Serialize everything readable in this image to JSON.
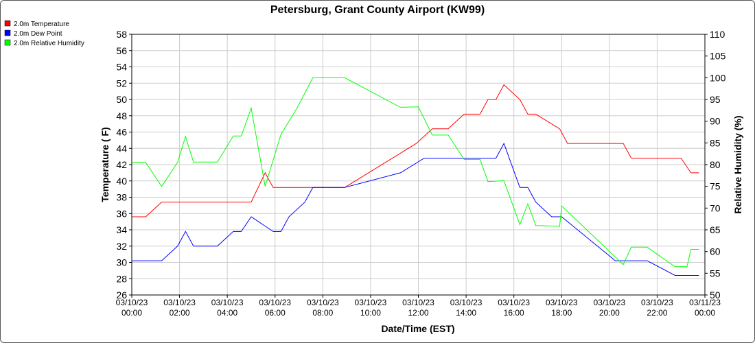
{
  "chart_data": {
    "type": "line",
    "title": "Petersburg, Grant County Airport (KW99)",
    "xlabel": "Date/Time (EST)",
    "ylabel": "Temperature ( F)",
    "y2label": "Relative Humidity (%)",
    "xlim": [
      "2023-03-10 00:00",
      "2023-03-11 00:00"
    ],
    "ylim": [
      26,
      58
    ],
    "y2lim": [
      50,
      110
    ],
    "x_ticks": [
      {
        "t": "2023-03-10 00:00",
        "date": "03/10/23",
        "time": "00:00"
      },
      {
        "t": "2023-03-10 02:00",
        "date": "03/10/23",
        "time": "02:00"
      },
      {
        "t": "2023-03-10 04:00",
        "date": "03/10/23",
        "time": "04:00"
      },
      {
        "t": "2023-03-10 06:00",
        "date": "03/10/23",
        "time": "06:00"
      },
      {
        "t": "2023-03-10 08:00",
        "date": "03/10/23",
        "time": "08:00"
      },
      {
        "t": "2023-03-10 10:00",
        "date": "03/10/23",
        "time": "10:00"
      },
      {
        "t": "2023-03-10 12:00",
        "date": "03/10/23",
        "time": "12:00"
      },
      {
        "t": "2023-03-10 14:00",
        "date": "03/10/23",
        "time": "14:00"
      },
      {
        "t": "2023-03-10 16:00",
        "date": "03/10/23",
        "time": "16:00"
      },
      {
        "t": "2023-03-10 18:00",
        "date": "03/10/23",
        "time": "18:00"
      },
      {
        "t": "2023-03-10 20:00",
        "date": "03/10/23",
        "time": "20:00"
      },
      {
        "t": "2023-03-10 22:00",
        "date": "03/10/23",
        "time": "22:00"
      },
      {
        "t": "2023-03-11 00:00",
        "date": "03/11/23",
        "time": "00:00"
      }
    ],
    "y_ticks": [
      26,
      28,
      30,
      32,
      34,
      36,
      38,
      40,
      42,
      44,
      46,
      48,
      50,
      52,
      54,
      56,
      58
    ],
    "y2_ticks": [
      50,
      55,
      60,
      65,
      70,
      75,
      80,
      85,
      90,
      95,
      100,
      105,
      110
    ],
    "grid": true,
    "legend_position": "top-left",
    "series": [
      {
        "name": "2.0m Temperature",
        "axis": "left",
        "color": "#ff0000",
        "points": [
          [
            "2023-03-10 00:00",
            35.6
          ],
          [
            "2023-03-10 00:35",
            35.6
          ],
          [
            "2023-03-10 01:15",
            37.4
          ],
          [
            "2023-03-10 05:00",
            37.4
          ],
          [
            "2023-03-10 05:35",
            41.0
          ],
          [
            "2023-03-10 05:55",
            39.2
          ],
          [
            "2023-03-10 08:55",
            39.2
          ],
          [
            "2023-03-10 11:55",
            44.6
          ],
          [
            "2023-03-10 12:35",
            46.4
          ],
          [
            "2023-03-10 13:15",
            46.4
          ],
          [
            "2023-03-10 13:55",
            48.2
          ],
          [
            "2023-03-10 14:35",
            48.2
          ],
          [
            "2023-03-10 14:55",
            50.0
          ],
          [
            "2023-03-10 15:15",
            50.0
          ],
          [
            "2023-03-10 15:35",
            51.8
          ],
          [
            "2023-03-10 16:15",
            50.0
          ],
          [
            "2023-03-10 16:35",
            48.2
          ],
          [
            "2023-03-10 16:55",
            48.2
          ],
          [
            "2023-03-10 17:55",
            46.4
          ],
          [
            "2023-03-10 18:15",
            44.6
          ],
          [
            "2023-03-10 20:35",
            44.6
          ],
          [
            "2023-03-10 20:55",
            42.8
          ],
          [
            "2023-03-10 23:00",
            42.8
          ],
          [
            "2023-03-10 23:25",
            41.0
          ],
          [
            "2023-03-10 23:45",
            41.0
          ]
        ]
      },
      {
        "name": "2.0m Dew Point",
        "axis": "left",
        "color": "#0000ff",
        "points": [
          [
            "2023-03-10 00:00",
            30.2
          ],
          [
            "2023-03-10 01:15",
            30.2
          ],
          [
            "2023-03-10 01:55",
            32.0
          ],
          [
            "2023-03-10 02:15",
            33.8
          ],
          [
            "2023-03-10 02:35",
            32.0
          ],
          [
            "2023-03-10 03:35",
            32.0
          ],
          [
            "2023-03-10 04:15",
            33.8
          ],
          [
            "2023-03-10 04:35",
            33.8
          ],
          [
            "2023-03-10 05:00",
            35.6
          ],
          [
            "2023-03-10 05:55",
            33.8
          ],
          [
            "2023-03-10 06:15",
            33.8
          ],
          [
            "2023-03-10 06:35",
            35.6
          ],
          [
            "2023-03-10 07:15",
            37.4
          ],
          [
            "2023-03-10 07:35",
            39.2
          ],
          [
            "2023-03-10 08:55",
            39.2
          ],
          [
            "2023-03-10 11:15",
            41.0
          ],
          [
            "2023-03-10 12:15",
            42.8
          ],
          [
            "2023-03-10 15:15",
            42.8
          ],
          [
            "2023-03-10 15:35",
            44.6
          ],
          [
            "2023-03-10 16:15",
            39.2
          ],
          [
            "2023-03-10 16:35",
            39.2
          ],
          [
            "2023-03-10 16:55",
            37.4
          ],
          [
            "2023-03-10 17:35",
            35.6
          ],
          [
            "2023-03-10 18:00",
            35.6
          ],
          [
            "2023-03-10 20:15",
            30.2
          ],
          [
            "2023-03-10 21:35",
            30.2
          ],
          [
            "2023-03-10 22:45",
            28.4
          ],
          [
            "2023-03-10 23:45",
            28.4
          ]
        ]
      },
      {
        "name": "2.0m Relative Humidity",
        "axis": "right",
        "color": "#00ff00",
        "points": [
          [
            "2023-03-10 00:00",
            80.5
          ],
          [
            "2023-03-10 00:35",
            80.5
          ],
          [
            "2023-03-10 01:15",
            75.0
          ],
          [
            "2023-03-10 01:55",
            80.5
          ],
          [
            "2023-03-10 02:15",
            86.5
          ],
          [
            "2023-03-10 02:35",
            80.6
          ],
          [
            "2023-03-10 03:35",
            80.6
          ],
          [
            "2023-03-10 04:15",
            86.6
          ],
          [
            "2023-03-10 04:35",
            86.6
          ],
          [
            "2023-03-10 05:00",
            93.0
          ],
          [
            "2023-03-10 05:35",
            75.0
          ],
          [
            "2023-03-10 06:15",
            87.0
          ],
          [
            "2023-03-10 06:55",
            93.0
          ],
          [
            "2023-03-10 07:35",
            100.0
          ],
          [
            "2023-03-10 08:55",
            100.0
          ],
          [
            "2023-03-10 11:15",
            93.2
          ],
          [
            "2023-03-10 12:00",
            93.3
          ],
          [
            "2023-03-10 12:35",
            86.8
          ],
          [
            "2023-03-10 13:15",
            86.8
          ],
          [
            "2023-03-10 13:55",
            81.2
          ],
          [
            "2023-03-10 14:35",
            81.2
          ],
          [
            "2023-03-10 14:55",
            76.1
          ],
          [
            "2023-03-10 15:35",
            76.3
          ],
          [
            "2023-03-10 16:15",
            66.2
          ],
          [
            "2023-03-10 16:35",
            71.0
          ],
          [
            "2023-03-10 16:55",
            66.0
          ],
          [
            "2023-03-10 17:55",
            65.8
          ],
          [
            "2023-03-10 18:00",
            70.5
          ],
          [
            "2023-03-10 20:35",
            57.0
          ],
          [
            "2023-03-10 20:55",
            61.0
          ],
          [
            "2023-03-10 21:35",
            61.0
          ],
          [
            "2023-03-10 22:45",
            56.5
          ],
          [
            "2023-03-10 23:15",
            56.5
          ],
          [
            "2023-03-10 23:25",
            60.5
          ],
          [
            "2023-03-10 23:45",
            60.5
          ]
        ]
      }
    ]
  }
}
